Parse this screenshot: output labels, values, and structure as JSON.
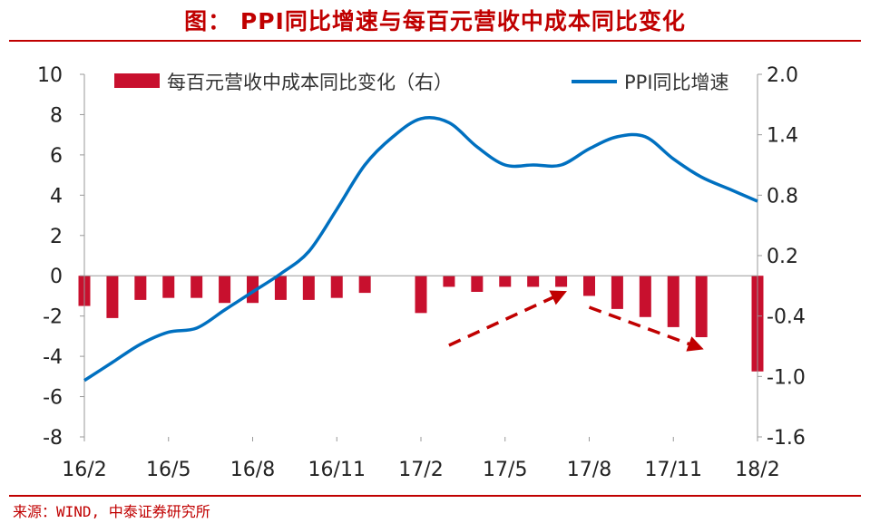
{
  "title": "图：  PPI同比增速与每百元营收中成本同比变化",
  "source": "来源：WIND, 中泰证券研究所",
  "colors": {
    "bar": "#c8102e",
    "line": "#0070c0",
    "arrow": "#c00000",
    "accent": "#c00000"
  },
  "chart_data": {
    "type": "bar+line",
    "categories": [
      "16/2",
      "16/3",
      "16/4",
      "16/5",
      "16/6",
      "16/7",
      "16/8",
      "16/9",
      "16/10",
      "16/11",
      "16/12",
      "17/1",
      "17/2",
      "17/3",
      "17/4",
      "17/5",
      "17/6",
      "17/7",
      "17/8",
      "17/9",
      "17/10",
      "17/11",
      "17/12",
      "18/1",
      "18/2"
    ],
    "x_tick_labels": [
      "16/2",
      "16/5",
      "16/8",
      "16/11",
      "17/2",
      "17/5",
      "17/8",
      "17/11",
      "18/2"
    ],
    "left_axis": {
      "ylim": [
        -8,
        10
      ],
      "ticks": [
        "10",
        "8",
        "6",
        "4",
        "2",
        "0",
        "-2",
        "-4",
        "-6",
        "-8"
      ]
    },
    "right_axis": {
      "ylim": [
        -1.6,
        2.0
      ],
      "ticks": [
        "2.0",
        "1.4",
        "0.8",
        "0.2",
        "-0.4",
        "-1.0",
        "-1.6"
      ]
    },
    "series": [
      {
        "name": "每百元营收中成本同比变化（右）",
        "type": "bar",
        "axis": "right",
        "values": [
          -0.3,
          -0.42,
          -0.24,
          -0.22,
          -0.22,
          -0.27,
          -0.27,
          -0.24,
          -0.24,
          -0.22,
          -0.17,
          null,
          -0.37,
          -0.11,
          -0.16,
          -0.11,
          -0.11,
          -0.11,
          -0.2,
          -0.33,
          -0.41,
          -0.51,
          -0.61,
          null,
          -0.95
        ]
      },
      {
        "name": "PPI同比增速",
        "type": "line",
        "axis": "left",
        "values": [
          -5.2,
          -4.3,
          -3.4,
          -2.8,
          -2.6,
          -1.7,
          -0.8,
          0.1,
          1.2,
          3.3,
          5.5,
          6.9,
          7.8,
          7.6,
          6.4,
          5.5,
          5.5,
          5.5,
          6.3,
          6.9,
          6.9,
          5.8,
          4.9,
          4.3,
          3.7
        ]
      }
    ],
    "legend": "top",
    "grid": false
  }
}
